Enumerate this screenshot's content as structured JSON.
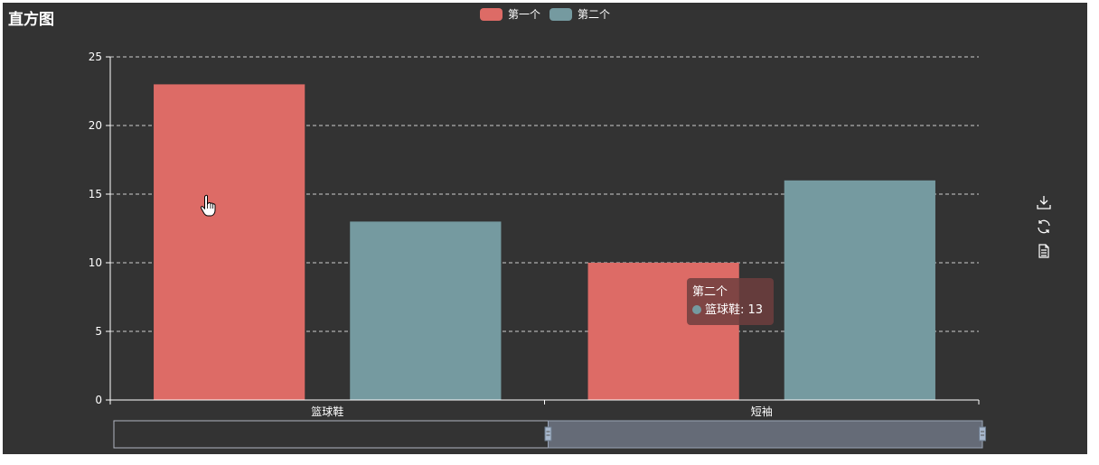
{
  "title": "直方图",
  "legend": [
    {
      "name": "第一个",
      "color": "#dd6b66"
    },
    {
      "name": "第二个",
      "color": "#759aa0"
    }
  ],
  "chart_data": {
    "type": "bar",
    "title": "直方图",
    "categories": [
      "篮球鞋",
      "短袖"
    ],
    "series": [
      {
        "name": "第一个",
        "values": [
          23,
          10
        ],
        "color": "#dd6b66"
      },
      {
        "name": "第二个",
        "values": [
          13,
          16
        ],
        "color": "#759aa0"
      }
    ],
    "ylim": [
      0,
      25
    ],
    "yticks": [
      0,
      5,
      10,
      15,
      20,
      25
    ],
    "grid": true,
    "legend_position": "top-center",
    "datazoom": {
      "start_percent": 50,
      "end_percent": 100
    }
  },
  "tooltip": {
    "series": "第二个",
    "category": "篮球鞋",
    "value": "13",
    "marker_color": "#759aa0"
  },
  "toolbox": [
    {
      "icon": "download-icon"
    },
    {
      "icon": "refresh-icon"
    },
    {
      "icon": "data-view-icon"
    }
  ],
  "colors": {
    "background": "#333333",
    "axis": "#ffffff",
    "grid": "#cccccc",
    "slider_fill": "#656b77",
    "slider_border": "#9aa4b6"
  }
}
